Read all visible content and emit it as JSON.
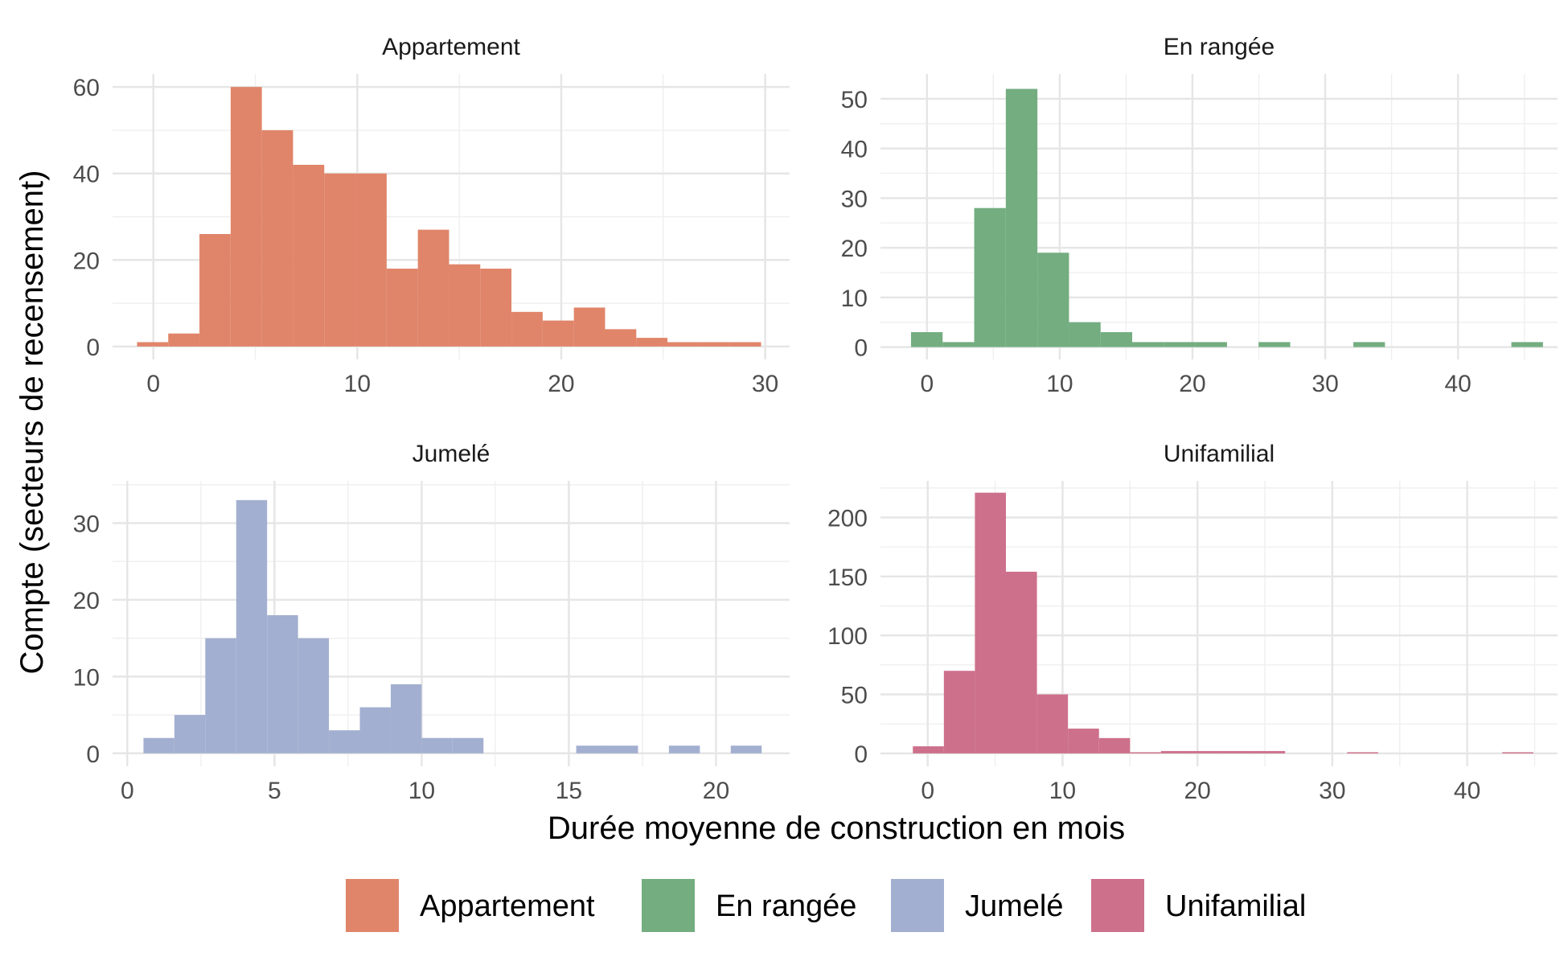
{
  "chart_data": {
    "type": "bar",
    "subtype": "histogram",
    "layout": "facet_wrap 2x2, free scales",
    "xlabel": "Durée moyenne de construction en mois",
    "ylabel": "Compte (secteurs de recensement)",
    "grid": true,
    "legend": {
      "position": "bottom"
    },
    "legend_entries": [
      "Appartement",
      "En rangée",
      "Jumelé",
      "Unifamilial"
    ],
    "panels": [
      {
        "title": "Appartement",
        "color": "#E0856A",
        "xlim": [
          -2,
          31.2
        ],
        "ylim": [
          -3,
          63
        ],
        "x_ticks": [
          0,
          10,
          20,
          30
        ],
        "y_ticks": [
          0,
          20,
          40,
          60
        ],
        "bin_width": 1.53,
        "bins_start": [
          -0.8,
          0.73,
          2.26,
          3.79,
          5.32,
          6.85,
          8.38,
          9.91,
          11.44,
          12.97,
          14.5,
          16.03,
          17.56,
          19.09,
          20.62,
          22.15,
          23.68,
          25.21,
          26.74,
          28.27
        ],
        "counts": [
          1,
          3,
          26,
          60,
          50,
          42,
          40,
          40,
          18,
          27,
          19,
          18,
          8,
          6,
          9,
          4,
          2,
          1,
          1,
          1
        ]
      },
      {
        "title": "En rangée",
        "color": "#73AD80",
        "xlim": [
          -3.5,
          47.5
        ],
        "ylim": [
          -2.5,
          55
        ],
        "x_ticks": [
          0,
          10,
          20,
          30,
          40
        ],
        "y_ticks": [
          0,
          10,
          20,
          30,
          40,
          50
        ],
        "bin_width": 2.38,
        "bins_start": [
          -1.2,
          1.18,
          3.56,
          5.94,
          8.32,
          10.7,
          13.08,
          15.46,
          17.84,
          20.22,
          22.6,
          24.98,
          27.36,
          29.74,
          32.12,
          34.5,
          36.88,
          39.26,
          41.64,
          44.02
        ],
        "counts": [
          3,
          1,
          28,
          52,
          19,
          5,
          3,
          1,
          1,
          1,
          0,
          1,
          0,
          0,
          1,
          0,
          0,
          0,
          0,
          1
        ]
      },
      {
        "title": "Jumelé",
        "color": "#A3AFD0",
        "xlim": [
          -0.5,
          22.5
        ],
        "ylim": [
          -1.7,
          35.5
        ],
        "x_ticks": [
          0,
          5,
          10,
          15,
          20
        ],
        "y_ticks": [
          0,
          10,
          20,
          30
        ],
        "bin_width": 1.05,
        "bins_start": [
          0.55,
          1.6,
          2.65,
          3.7,
          4.75,
          5.8,
          6.85,
          7.9,
          8.95,
          10.0,
          11.05,
          12.1,
          13.15,
          14.2,
          15.25,
          16.3,
          17.35,
          18.4,
          19.45,
          20.5
        ],
        "counts": [
          2,
          5,
          15,
          33,
          18,
          15,
          3,
          6,
          9,
          2,
          2,
          0,
          0,
          0,
          1,
          1,
          0,
          1,
          0,
          1
        ]
      },
      {
        "title": "Unifamilial",
        "color": "#CD708B",
        "xlim": [
          -3.5,
          46.7
        ],
        "ylim": [
          -11,
          231
        ],
        "x_ticks": [
          0,
          10,
          20,
          30,
          40
        ],
        "y_ticks": [
          0,
          50,
          100,
          150,
          200
        ],
        "bin_width": 2.3,
        "bins_start": [
          -1.1,
          1.2,
          3.5,
          5.8,
          8.1,
          10.4,
          12.7,
          15.0,
          17.3,
          19.6,
          21.9,
          24.2,
          26.5,
          28.8,
          31.1,
          33.4,
          35.7,
          38.0,
          40.3,
          42.6
        ],
        "counts": [
          6,
          70,
          221,
          154,
          50,
          21,
          13,
          1,
          2,
          2,
          2,
          2,
          0,
          0,
          1,
          0,
          0,
          0,
          0,
          1
        ]
      }
    ]
  }
}
